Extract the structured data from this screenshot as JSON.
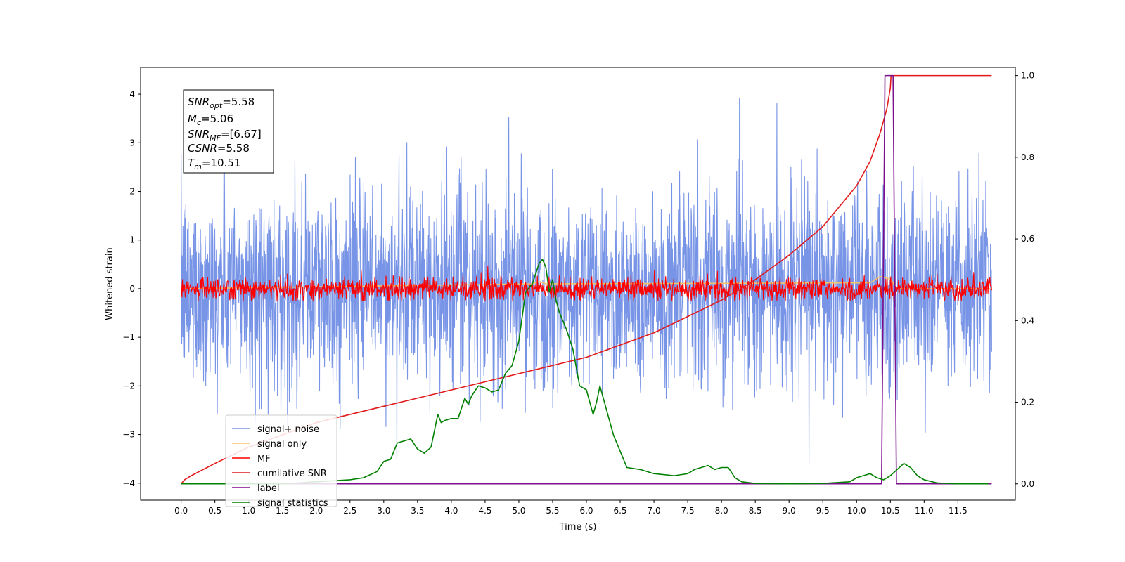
{
  "chart_data": {
    "type": "line",
    "title": "",
    "xlabel": "Time (s)",
    "ylabel": "Whitened strain",
    "xlim": [
      -0.6,
      12.35
    ],
    "ylim": [
      -4.35,
      4.55
    ],
    "y2lim": [
      -0.04,
      1.02
    ],
    "xticks": [
      0.0,
      0.5,
      1.0,
      1.5,
      2.0,
      2.5,
      3.0,
      3.5,
      4.0,
      4.5,
      5.0,
      5.5,
      6.0,
      6.5,
      7.0,
      7.5,
      8.0,
      8.5,
      9.0,
      9.5,
      10.0,
      10.5,
      11.0,
      11.5
    ],
    "xtick_labels": [
      "0.0",
      "0.5",
      "1.0",
      "1.5",
      "2.0",
      "2.5",
      "3.0",
      "3.5",
      "4.0",
      "4.5",
      "5.0",
      "5.5",
      "6.0",
      "6.5",
      "7.0",
      "7.5",
      "8.0",
      "8.5",
      "9.0",
      "9.5",
      "10.0",
      "10.5",
      "11.0",
      "11.5"
    ],
    "yticks": [
      -4,
      -3,
      -2,
      -1,
      0,
      1,
      2,
      3,
      4
    ],
    "ytick_labels": [
      "−4",
      "−3",
      "−2",
      "−1",
      "0",
      "1",
      "2",
      "3",
      "4"
    ],
    "y2ticks": [
      0.0,
      0.2,
      0.4,
      0.6,
      0.8,
      1.0
    ],
    "y2tick_labels": [
      "0.0",
      "0.2",
      "0.4",
      "0.6",
      "0.8",
      "1.0"
    ],
    "legend_position": "lower-left",
    "grid": false,
    "annotation": {
      "snr_opt": "5.58",
      "mc": "5.06",
      "snr_mf": "[6.67]",
      "csnr": "5.58",
      "tm": "10.51"
    },
    "series": [
      {
        "name": "signal+ noise",
        "axis": "left",
        "color": "#7894e6",
        "style": "noise band",
        "x_range": [
          0.0,
          12.0
        ],
        "envelope": [
          -2.0,
          2.0
        ],
        "peak_range": [
          -3.6,
          4.15
        ]
      },
      {
        "name": "signal only",
        "axis": "left",
        "color": "#f5c46a",
        "x": [
          0.0,
          5.2,
          5.3,
          5.4,
          10.2,
          10.35,
          10.5,
          10.6,
          12.0
        ],
        "y": [
          0.0,
          0.1,
          0.15,
          0.1,
          0.12,
          0.25,
          0.2,
          0.0,
          0.0
        ]
      },
      {
        "name": "MF",
        "axis": "left",
        "color": "#ff0000",
        "style": "noise band",
        "x_range": [
          0.0,
          12.0
        ],
        "envelope": [
          -0.2,
          0.2
        ],
        "peak_range": [
          -0.25,
          0.55
        ]
      },
      {
        "name": "cumilative SNR",
        "axis": "right",
        "color": "#e31a1c",
        "x": [
          0.0,
          0.05,
          0.15,
          0.5,
          1.0,
          1.5,
          2.0,
          2.5,
          3.0,
          3.5,
          4.0,
          4.5,
          5.0,
          5.5,
          6.0,
          6.5,
          7.0,
          7.5,
          8.0,
          8.5,
          9.0,
          9.5,
          10.0,
          10.2,
          10.35,
          10.45,
          10.5,
          10.51,
          11.5,
          12.0
        ],
        "y": [
          0.0,
          0.01,
          0.02,
          0.05,
          0.09,
          0.12,
          0.15,
          0.17,
          0.19,
          0.21,
          0.23,
          0.25,
          0.27,
          0.29,
          0.31,
          0.34,
          0.37,
          0.41,
          0.45,
          0.5,
          0.56,
          0.63,
          0.73,
          0.79,
          0.86,
          0.92,
          0.97,
          1.0,
          1.0,
          1.0
        ]
      },
      {
        "name": "label",
        "axis": "right",
        "color": "#7b0f8c",
        "x": [
          0.0,
          10.37,
          10.42,
          10.54,
          10.59,
          12.0
        ],
        "y": [
          0.0,
          0.0,
          1.0,
          1.0,
          0.0,
          0.0
        ]
      },
      {
        "name": "signal statistics",
        "axis": "right",
        "color": "#008000",
        "x": [
          0.0,
          0.5,
          1.0,
          1.5,
          2.0,
          2.5,
          2.7,
          2.9,
          3.0,
          3.1,
          3.2,
          3.3,
          3.4,
          3.5,
          3.6,
          3.7,
          3.8,
          3.85,
          3.9,
          4.0,
          4.1,
          4.2,
          4.25,
          4.3,
          4.4,
          4.5,
          4.6,
          4.7,
          4.8,
          4.9,
          5.0,
          5.1,
          5.2,
          5.3,
          5.35,
          5.4,
          5.45,
          5.5,
          5.55,
          5.6,
          5.7,
          5.8,
          5.9,
          6.0,
          6.1,
          6.15,
          6.2,
          6.3,
          6.4,
          6.5,
          6.6,
          6.8,
          7.0,
          7.3,
          7.5,
          7.6,
          7.8,
          7.9,
          8.0,
          8.1,
          8.2,
          8.3,
          8.5,
          9.0,
          9.5,
          9.9,
          10.0,
          10.1,
          10.2,
          10.3,
          10.4,
          10.5,
          10.6,
          10.7,
          10.8,
          10.9,
          11.0,
          11.2,
          11.5,
          11.95
        ],
        "y": [
          0.0,
          0.0,
          0.0,
          0.0,
          0.005,
          0.01,
          0.015,
          0.03,
          0.055,
          0.06,
          0.1,
          0.105,
          0.11,
          0.085,
          0.075,
          0.09,
          0.17,
          0.15,
          0.155,
          0.16,
          0.16,
          0.21,
          0.195,
          0.215,
          0.24,
          0.235,
          0.225,
          0.23,
          0.27,
          0.29,
          0.35,
          0.47,
          0.49,
          0.54,
          0.55,
          0.53,
          0.47,
          0.5,
          0.45,
          0.42,
          0.38,
          0.33,
          0.24,
          0.23,
          0.17,
          0.2,
          0.24,
          0.18,
          0.12,
          0.08,
          0.04,
          0.035,
          0.025,
          0.02,
          0.025,
          0.035,
          0.045,
          0.035,
          0.04,
          0.04,
          0.015,
          0.005,
          0.001,
          0.0,
          0.001,
          0.005,
          0.015,
          0.02,
          0.025,
          0.015,
          0.01,
          0.02,
          0.035,
          0.05,
          0.04,
          0.02,
          0.01,
          0.002,
          0.0,
          0.0
        ]
      }
    ]
  }
}
